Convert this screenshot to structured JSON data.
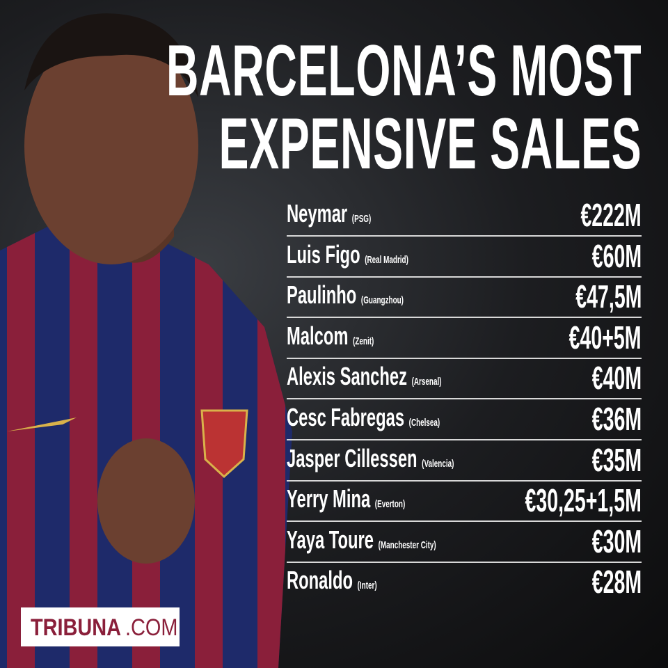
{
  "header": {
    "title": [
      "BARCELONA’S MOST",
      "EXPENSIVE SALES"
    ]
  },
  "table": {
    "rows": [
      {
        "name": "Neymar",
        "club": "(PSG)",
        "fee": "€222M"
      },
      {
        "name": "Luis Figo",
        "club": "(Real Madrid)",
        "fee": "€60M"
      },
      {
        "name": "Paulinho",
        "club": "(Guangzhou)",
        "fee": "€47,5M"
      },
      {
        "name": "Malcom",
        "club": "(Zenit)",
        "fee": "€40+5M"
      },
      {
        "name": "Alexis Sanchez",
        "club": "(Arsenal)",
        "fee": "€40M"
      },
      {
        "name": "Cesc Fabregas",
        "club": "(Chelsea)",
        "fee": "€36M"
      },
      {
        "name": "Jasper Cillessen",
        "club": "(Valencia)",
        "fee": "€35M"
      },
      {
        "name": "Yerry Mina",
        "club": "(Everton)",
        "fee": "€30,25+1,5M"
      },
      {
        "name": "Yaya Toure",
        "club": "(Manchester City)",
        "fee": "€30M"
      },
      {
        "name": "Ronaldo",
        "club": "(Inter)",
        "fee": "€28M"
      }
    ]
  },
  "logo": {
    "brand": "TRIBUNA",
    "suffix": ".COM"
  }
}
